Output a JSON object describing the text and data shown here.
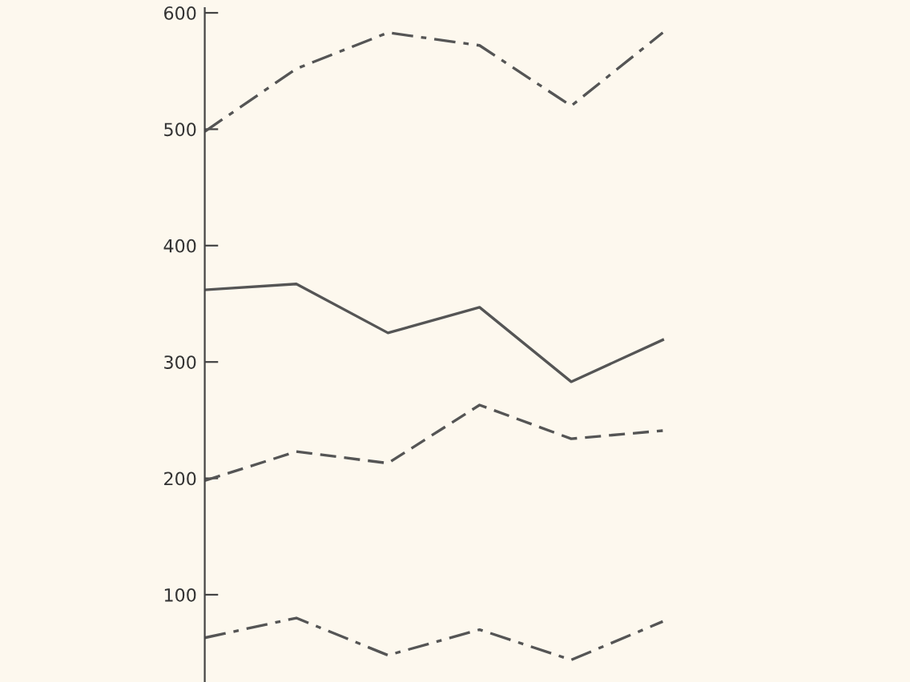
{
  "chart_data": {
    "type": "line",
    "categories": [
      null,
      null,
      null,
      null,
      null,
      null
    ],
    "series": [
      {
        "color": "#555555",
        "line_style": "dashdot",
        "values": [
          498,
          552,
          583,
          572,
          520,
          583
        ]
      },
      {
        "color": "#555555",
        "line_style": "solid",
        "values": [
          362,
          367,
          325,
          347,
          283,
          319
        ]
      },
      {
        "color": "#555555",
        "line_style": "dashed",
        "values": [
          198,
          223,
          213,
          263,
          234,
          241
        ]
      },
      {
        "color": "#555555",
        "line_style": "dashdot",
        "values": [
          63,
          80,
          48,
          70,
          44,
          77
        ]
      }
    ],
    "ylim": [
      25,
      604
    ],
    "yticks": [
      100,
      200,
      300,
      400,
      500,
      600
    ],
    "tick_labels": "y",
    "grid": false,
    "legend": false,
    "marker": "none"
  }
}
